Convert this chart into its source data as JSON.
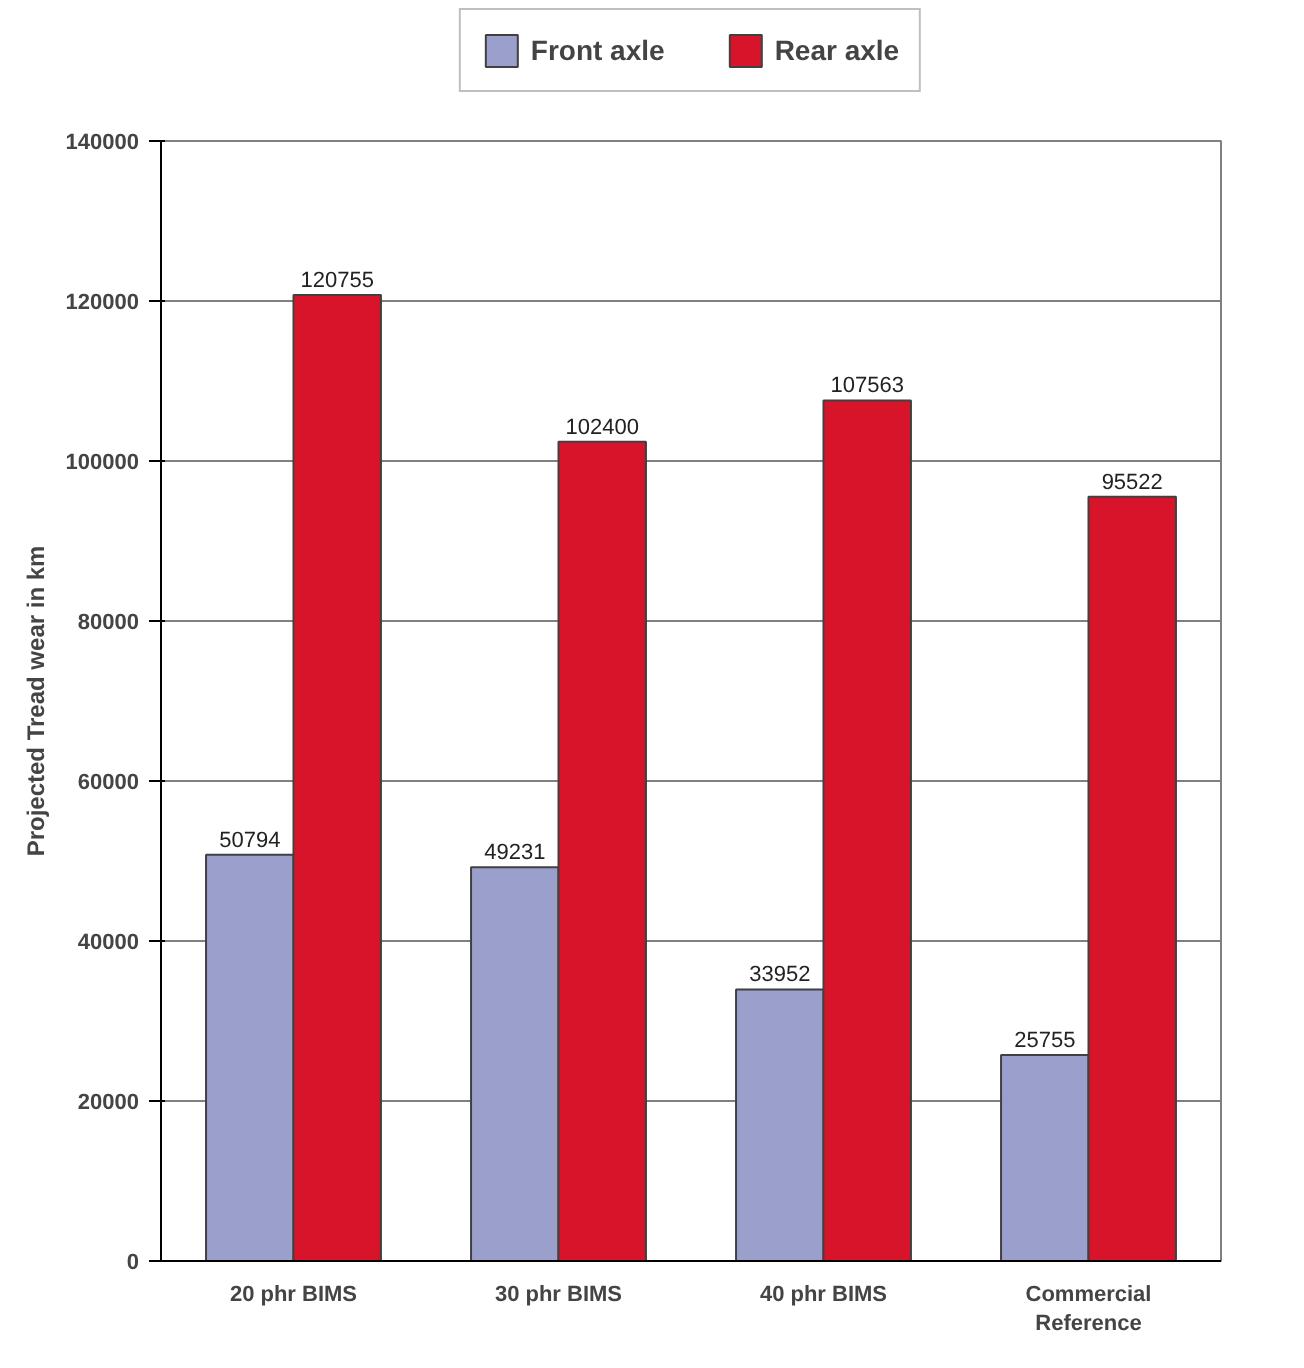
{
  "chart_data": {
    "type": "bar",
    "ylabel": "Projected Tread wear in km",
    "categories": [
      "20 phr BIMS",
      "30 phr BIMS",
      "40 phr BIMS",
      "Commercial Reference"
    ],
    "series": [
      {
        "name": "Front axle",
        "color": "#9b9fcb",
        "values": [
          50794,
          49231,
          33952,
          25755
        ]
      },
      {
        "name": "Rear axle",
        "color": "#d8142a",
        "values": [
          120755,
          102400,
          107563,
          95522
        ]
      }
    ],
    "ylim": [
      0,
      140000
    ],
    "yticks": [
      0,
      20000,
      40000,
      60000,
      80000,
      100000,
      120000,
      140000
    ],
    "grid": "y",
    "legend": "top",
    "data_labels": true
  }
}
